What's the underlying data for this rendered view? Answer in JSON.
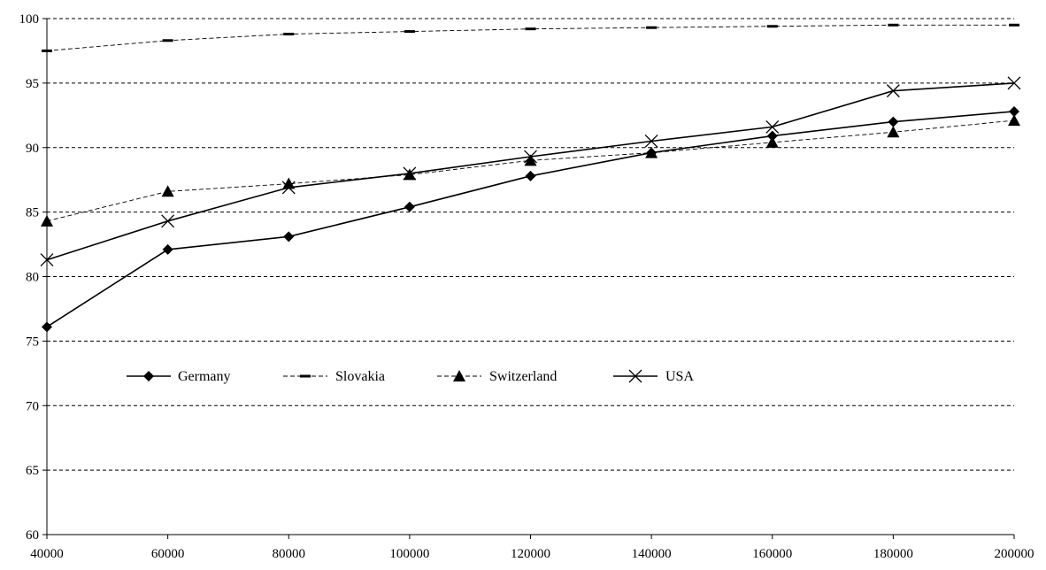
{
  "chart_data": {
    "type": "line",
    "title": "",
    "xlabel": "",
    "ylabel": "",
    "x": [
      40000,
      60000,
      80000,
      100000,
      120000,
      140000,
      160000,
      180000,
      200000
    ],
    "xlim": [
      40000,
      200000
    ],
    "ylim": [
      60,
      100
    ],
    "x_ticks": [
      "40000",
      "60000",
      "80000",
      "100000",
      "120000",
      "140000",
      "160000",
      "180000",
      "200000"
    ],
    "y_ticks": [
      "60",
      "65",
      "70",
      "75",
      "80",
      "85",
      "90",
      "95",
      "100"
    ],
    "grid": "horizontal dashed",
    "legend_position": "inside lower-left",
    "series": [
      {
        "name": "Germany",
        "values": [
          76.1,
          82.1,
          83.1,
          85.4,
          87.8,
          89.6,
          90.9,
          92.0,
          92.8
        ],
        "marker": "diamond",
        "line": "solid"
      },
      {
        "name": "Slovakia",
        "values": [
          97.5,
          98.3,
          98.8,
          99.0,
          99.2,
          99.3,
          99.4,
          99.5,
          99.5
        ],
        "marker": "dash",
        "line": "dashed"
      },
      {
        "name": "Switzerland",
        "values": [
          84.3,
          86.6,
          87.2,
          87.9,
          89.0,
          89.6,
          90.4,
          91.2,
          92.1
        ],
        "marker": "triangle",
        "line": "dashed"
      },
      {
        "name": "USA",
        "values": [
          81.3,
          84.3,
          86.9,
          88.0,
          89.3,
          90.5,
          91.6,
          94.4,
          95.0
        ],
        "marker": "x",
        "line": "solid"
      }
    ]
  }
}
